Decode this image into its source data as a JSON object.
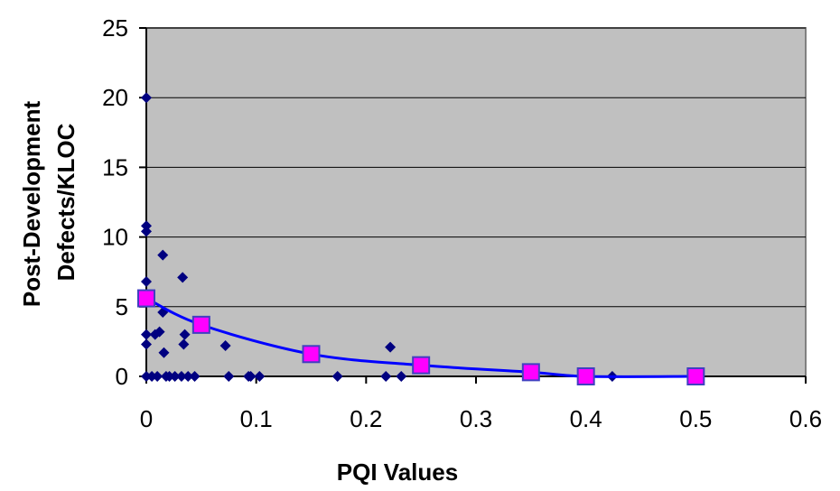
{
  "chart_data": {
    "type": "scatter",
    "title": "",
    "xlabel": "PQI Values",
    "ylabel_lines": [
      "Post-Development",
      "Defects/KLOC"
    ],
    "xlim": [
      0,
      0.6
    ],
    "ylim": [
      0,
      25
    ],
    "xticks": [
      0,
      0.1,
      0.2,
      0.3,
      0.4,
      0.5,
      0.6
    ],
    "xtick_labels": [
      "0",
      "0.1",
      "0.2",
      "0.3",
      "0.4",
      "0.5",
      "0.6"
    ],
    "yticks": [
      0,
      5,
      10,
      15,
      20,
      25
    ],
    "ytick_labels": [
      "0",
      "5",
      "10",
      "15",
      "20",
      "25"
    ],
    "grid": "horizontal",
    "legend": "none",
    "series": [
      {
        "marker": "diamond",
        "color": "#000080",
        "points": [
          [
            0,
            20
          ],
          [
            0,
            10.8
          ],
          [
            0,
            10.4
          ],
          [
            0,
            6.8
          ],
          [
            0,
            3.0
          ],
          [
            0,
            2.3
          ],
          [
            0,
            0
          ],
          [
            0.005,
            0
          ],
          [
            0.008,
            3.0
          ],
          [
            0.01,
            0
          ],
          [
            0.012,
            3.2
          ],
          [
            0.015,
            8.7
          ],
          [
            0.015,
            4.6
          ],
          [
            0.016,
            1.7
          ],
          [
            0.018,
            0
          ],
          [
            0.021,
            0
          ],
          [
            0.026,
            0
          ],
          [
            0.032,
            0
          ],
          [
            0.033,
            7.1
          ],
          [
            0.034,
            2.3
          ],
          [
            0.035,
            3.0
          ],
          [
            0.038,
            0
          ],
          [
            0.044,
            0
          ],
          [
            0.072,
            2.2
          ],
          [
            0.075,
            0
          ],
          [
            0.093,
            0
          ],
          [
            0.095,
            0
          ],
          [
            0.103,
            0
          ],
          [
            0.174,
            0
          ],
          [
            0.218,
            0
          ],
          [
            0.222,
            2.1
          ],
          [
            0.232,
            0
          ],
          [
            0.424,
            0
          ]
        ]
      },
      {
        "marker": "square",
        "color": "#ff00ff",
        "line_color": "#0000ff",
        "points": [
          [
            0,
            5.6
          ],
          [
            0.05,
            3.7
          ],
          [
            0.15,
            1.6
          ],
          [
            0.25,
            0.8
          ],
          [
            0.35,
            0.3
          ],
          [
            0.4,
            0
          ],
          [
            0.5,
            0
          ]
        ]
      }
    ]
  }
}
